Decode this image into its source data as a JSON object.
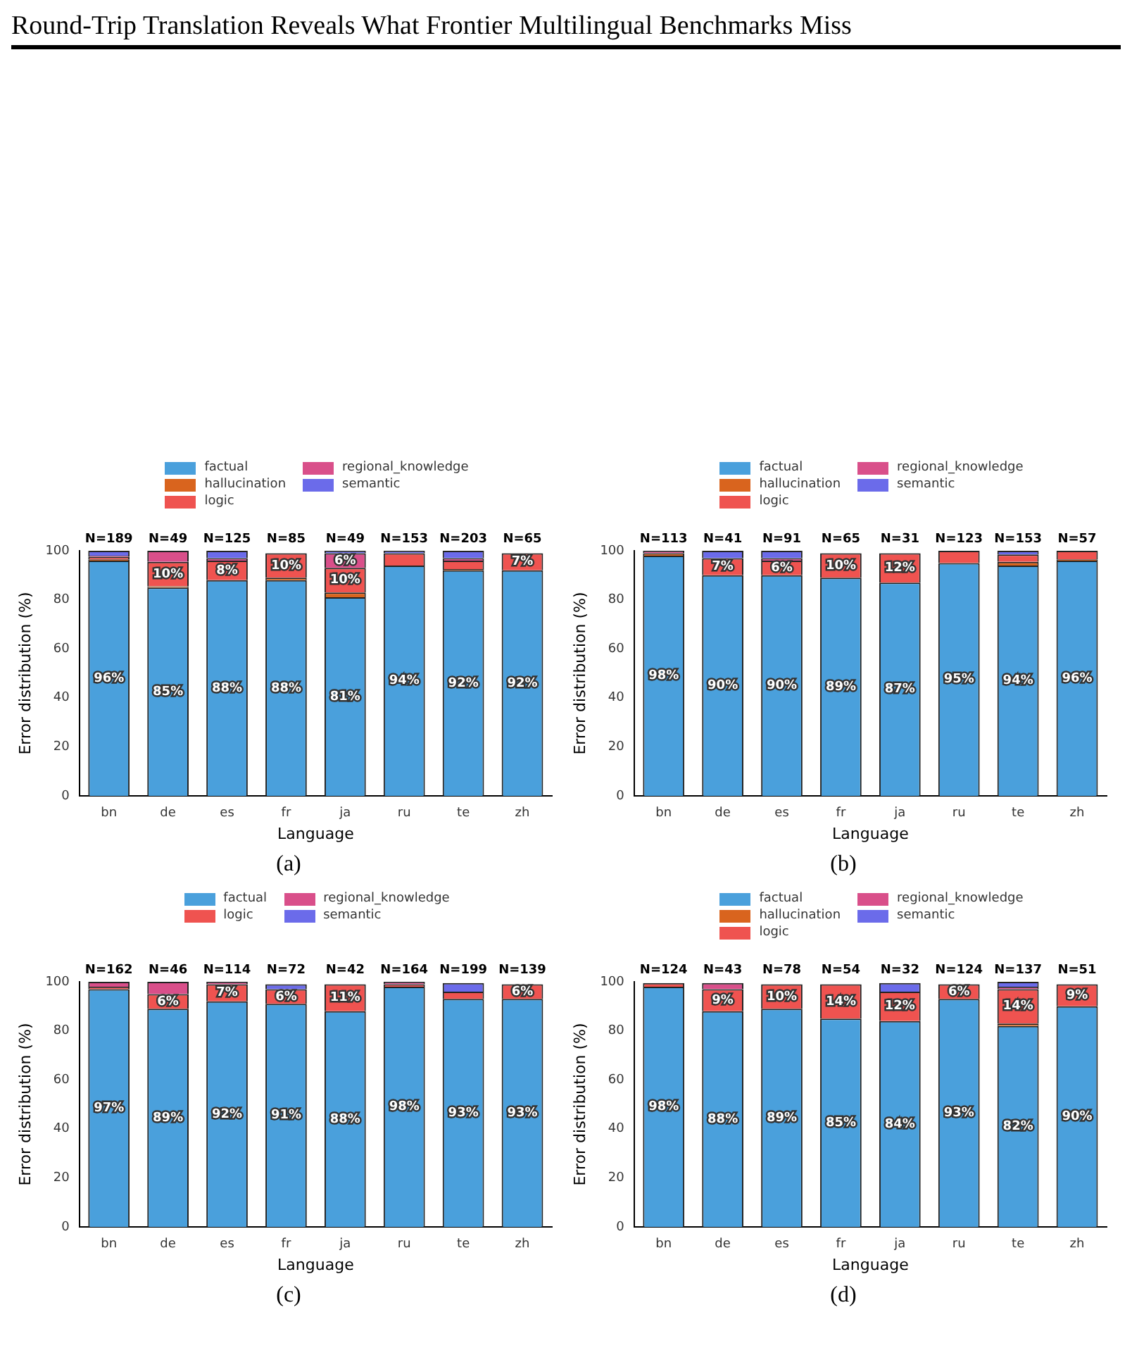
{
  "chart_data": [
    {
      "type": "bar",
      "title": "(a)",
      "xlabel": "Language",
      "ylabel": "Error distribution (%)",
      "categories": [
        "bn",
        "de",
        "es",
        "fr",
        "ja",
        "ru",
        "te",
        "zh"
      ],
      "stacked": true,
      "ylim": [
        0,
        100
      ],
      "yticks": [
        0,
        20,
        40,
        60,
        80,
        100
      ],
      "grid": false,
      "legend": "top",
      "annotations": [
        "Round-Trip Translation Reveals What Frontier Multilingual Benchmarks Miss",
        {
          "text": "N=189",
          "x": "bn",
          "y": 100
        },
        {
          "text": "N=49",
          "x": "de",
          "y": 100
        },
        {
          "text": "N=125",
          "x": "es",
          "y": 100
        },
        {
          "text": "N=85",
          "x": "fr",
          "y": 100
        },
        {
          "text": "N=49",
          "x": "ja",
          "y": 100
        },
        {
          "text": "N=153",
          "x": "ru",
          "y": 100
        },
        {
          "text": "N=203",
          "x": "te",
          "y": 100
        },
        {
          "text": "N=65",
          "x": "zh",
          "y": 100
        }
      ],
      "series": [
        {
          "name": "factual",
          "color": "#4aa0dc",
          "values": [
            96,
            85,
            88,
            88,
            81,
            94,
            92,
            92
          ],
          "value_labels": [
            "96%",
            "85%",
            "88%",
            "88%",
            "81%",
            "94%",
            "92%",
            "92%"
          ]
        },
        {
          "name": "hallucination",
          "color": "#d9641e",
          "values": [
            0.5,
            0.5,
            0,
            1,
            2,
            0,
            0.5,
            0
          ],
          "value_labels": [
            null,
            null,
            null,
            null,
            null,
            null,
            null,
            null
          ]
        },
        {
          "name": "logic",
          "color": "#ef5350",
          "values": [
            1,
            10,
            8,
            10,
            10,
            5,
            3.5,
            7
          ],
          "value_labels": [
            null,
            "10%",
            "8%",
            "10%",
            "10%",
            null,
            null,
            "7%"
          ]
        },
        {
          "name": "regional_knowledge",
          "color": "#d94f8a",
          "values": [
            0.5,
            4.5,
            1,
            0,
            6,
            0,
            1,
            0
          ],
          "value_labels": [
            null,
            null,
            null,
            null,
            "6%",
            null,
            null,
            null
          ]
        },
        {
          "name": "semantic",
          "color": "#6b6bea",
          "values": [
            2,
            0,
            3,
            0,
            1,
            1,
            3,
            0
          ],
          "value_labels": [
            null,
            null,
            null,
            null,
            null,
            null,
            null,
            null
          ]
        }
      ]
    },
    {
      "type": "bar",
      "title": "(b)",
      "xlabel": "Language",
      "ylabel": "Error distribution (%)",
      "categories": [
        "bn",
        "de",
        "es",
        "fr",
        "ja",
        "ru",
        "te",
        "zh"
      ],
      "stacked": true,
      "ylim": [
        0,
        100
      ],
      "yticks": [
        0,
        20,
        40,
        60,
        80,
        100
      ],
      "grid": false,
      "legend": "top",
      "annotations": [
        {
          "text": "N=113",
          "x": "bn",
          "y": 100
        },
        {
          "text": "N=41",
          "x": "de",
          "y": 100
        },
        {
          "text": "N=91",
          "x": "es",
          "y": 100
        },
        {
          "text": "N=65",
          "x": "fr",
          "y": 100
        },
        {
          "text": "N=31",
          "x": "ja",
          "y": 100
        },
        {
          "text": "N=123",
          "x": "ru",
          "y": 100
        },
        {
          "text": "N=153",
          "x": "te",
          "y": 100
        },
        {
          "text": "N=57",
          "x": "zh",
          "y": 100
        }
      ],
      "series": [
        {
          "name": "factual",
          "color": "#4aa0dc",
          "values": [
            98,
            90,
            90,
            89,
            87,
            95,
            94,
            96
          ],
          "value_labels": [
            "98%",
            "90%",
            "90%",
            "89%",
            "87%",
            "95%",
            "94%",
            "96%"
          ]
        },
        {
          "name": "hallucination",
          "color": "#d9641e",
          "values": [
            1,
            0,
            0,
            0,
            0,
            0,
            1.5,
            0.5
          ],
          "value_labels": [
            null,
            null,
            null,
            null,
            null,
            null,
            null,
            null
          ]
        },
        {
          "name": "logic",
          "color": "#ef5350",
          "values": [
            0,
            7,
            6,
            10,
            12,
            5,
            3,
            3.5
          ],
          "value_labels": [
            null,
            "7%",
            "6%",
            "10%",
            "12%",
            null,
            null,
            null
          ]
        },
        {
          "name": "regional_knowledge",
          "color": "#d94f8a",
          "values": [
            1,
            0,
            1,
            0,
            0,
            0,
            0,
            0
          ],
          "value_labels": [
            null,
            null,
            null,
            null,
            null,
            null,
            null,
            null
          ]
        },
        {
          "name": "semantic",
          "color": "#6b6bea",
          "values": [
            0,
            3,
            3,
            0,
            0,
            0,
            1.5,
            0
          ],
          "value_labels": [
            null,
            null,
            null,
            null,
            null,
            null,
            null,
            null
          ]
        }
      ]
    },
    {
      "type": "bar",
      "title": "(c)",
      "xlabel": "Language",
      "ylabel": "Error distribution (%)",
      "categories": [
        "bn",
        "de",
        "es",
        "fr",
        "ja",
        "ru",
        "te",
        "zh"
      ],
      "stacked": true,
      "ylim": [
        0,
        100
      ],
      "yticks": [
        0,
        20,
        40,
        60,
        80,
        100
      ],
      "grid": false,
      "legend": "top",
      "annotations": [
        {
          "text": "N=162",
          "x": "bn",
          "y": 100
        },
        {
          "text": "N=46",
          "x": "de",
          "y": 100
        },
        {
          "text": "N=114",
          "x": "es",
          "y": 100
        },
        {
          "text": "N=72",
          "x": "fr",
          "y": 100
        },
        {
          "text": "N=42",
          "x": "ja",
          "y": 100
        },
        {
          "text": "N=164",
          "x": "ru",
          "y": 100
        },
        {
          "text": "N=199",
          "x": "te",
          "y": 100
        },
        {
          "text": "N=139",
          "x": "zh",
          "y": 100
        }
      ],
      "series": [
        {
          "name": "factual",
          "color": "#4aa0dc",
          "values": [
            97,
            89,
            92,
            91,
            88,
            98,
            93,
            93
          ],
          "value_labels": [
            "97%",
            "89%",
            "92%",
            "91%",
            "88%",
            "98%",
            "93%",
            "93%"
          ]
        },
        {
          "name": "logic",
          "color": "#ef5350",
          "values": [
            1,
            6,
            7,
            6,
            11,
            1,
            3,
            6
          ],
          "value_labels": [
            null,
            "6%",
            "7%",
            "6%",
            "11%",
            null,
            null,
            "6%"
          ]
        },
        {
          "name": "regional_knowledge",
          "color": "#d94f8a",
          "values": [
            2,
            5,
            1,
            0,
            0,
            1,
            0,
            0
          ],
          "value_labels": [
            null,
            null,
            null,
            null,
            null,
            null,
            null,
            null
          ]
        },
        {
          "name": "semantic",
          "color": "#6b6bea",
          "values": [
            0,
            0,
            0,
            2,
            0,
            0,
            3.5,
            0
          ],
          "value_labels": [
            null,
            null,
            null,
            null,
            null,
            null,
            null,
            null
          ]
        }
      ]
    },
    {
      "type": "bar",
      "title": "(d)",
      "xlabel": "Language",
      "ylabel": "Error distribution (%)",
      "categories": [
        "bn",
        "de",
        "es",
        "fr",
        "ja",
        "ru",
        "te",
        "zh"
      ],
      "stacked": true,
      "ylim": [
        0,
        100
      ],
      "yticks": [
        0,
        20,
        40,
        60,
        80,
        100
      ],
      "grid": false,
      "legend": "top",
      "annotations": [
        {
          "text": "N=124",
          "x": "bn",
          "y": 100
        },
        {
          "text": "N=43",
          "x": "de",
          "y": 100
        },
        {
          "text": "N=78",
          "x": "es",
          "y": 100
        },
        {
          "text": "N=54",
          "x": "fr",
          "y": 100
        },
        {
          "text": "N=32",
          "x": "ja",
          "y": 100
        },
        {
          "text": "N=124",
          "x": "ru",
          "y": 100
        },
        {
          "text": "N=137",
          "x": "te",
          "y": 100
        },
        {
          "text": "N=51",
          "x": "zh",
          "y": 100
        }
      ],
      "series": [
        {
          "name": "factual",
          "color": "#4aa0dc",
          "values": [
            98,
            88,
            89,
            85,
            84,
            93,
            82,
            90
          ],
          "value_labels": [
            "98%",
            "88%",
            "89%",
            "85%",
            "84%",
            "93%",
            "82%",
            "90%"
          ]
        },
        {
          "name": "hallucination",
          "color": "#d9641e",
          "values": [
            0,
            0,
            0,
            0,
            0,
            0,
            1,
            0
          ],
          "value_labels": [
            null,
            null,
            null,
            null,
            null,
            null,
            null,
            null
          ]
        },
        {
          "name": "logic",
          "color": "#ef5350",
          "values": [
            1.5,
            9,
            10,
            14,
            12,
            6,
            14,
            9
          ],
          "value_labels": [
            null,
            "9%",
            "10%",
            "14%",
            "12%",
            "6%",
            "14%",
            "9%"
          ]
        },
        {
          "name": "regional_knowledge",
          "color": "#d94f8a",
          "values": [
            0,
            2.5,
            0,
            0,
            0,
            0,
            1,
            0
          ],
          "value_labels": [
            null,
            null,
            null,
            null,
            null,
            null,
            null,
            null
          ]
        },
        {
          "name": "semantic",
          "color": "#6b6bea",
          "values": [
            0,
            0,
            0,
            0,
            3.5,
            0,
            2,
            0
          ],
          "value_labels": [
            null,
            null,
            null,
            null,
            null,
            null,
            null,
            null
          ]
        }
      ]
    }
  ]
}
